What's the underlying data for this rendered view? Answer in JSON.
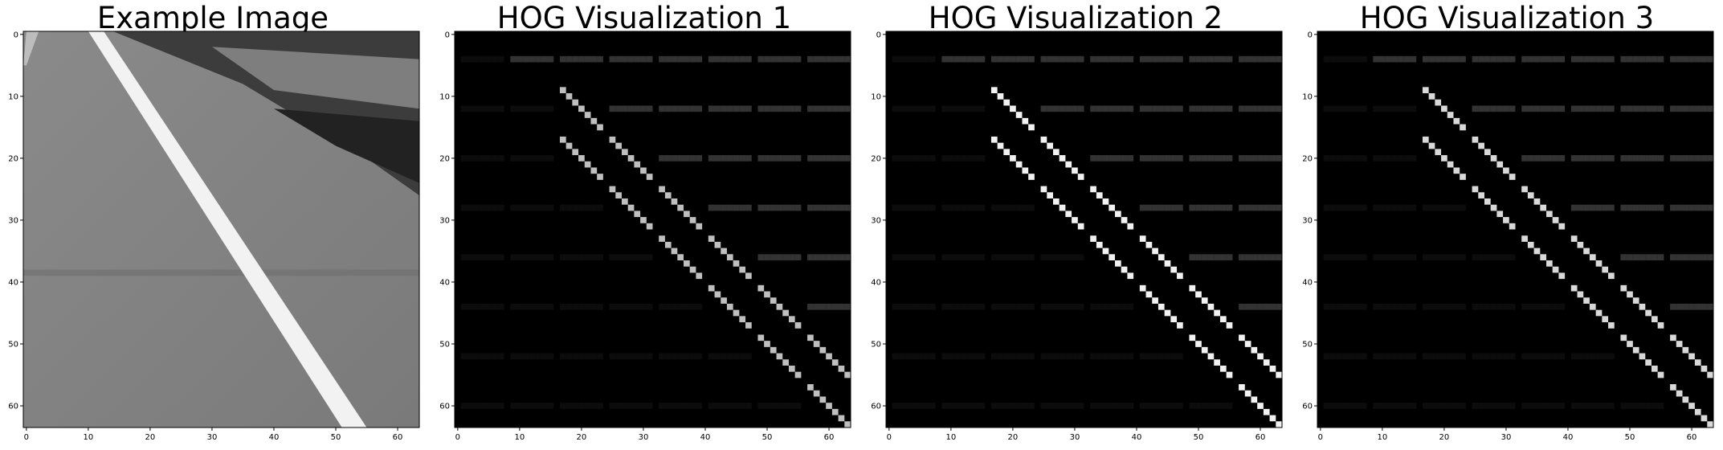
{
  "chart_data": [
    {
      "type": "heatmap",
      "title": "Example Image",
      "content": "grayscale road photo with a white lane line running diagonally from top-left to bottom-right",
      "xlim": [
        0,
        63
      ],
      "ylim": [
        63,
        0
      ],
      "xticks": [
        "0",
        "10",
        "20",
        "30",
        "40",
        "50",
        "60"
      ],
      "yticks": [
        "0",
        "10",
        "20",
        "30",
        "40",
        "50",
        "60"
      ],
      "grid": false
    },
    {
      "type": "heatmap",
      "title": "HOG Visualization 1",
      "content": "HOG gradient orientation cells; brightest oriented strokes follow the diagonal lane edge",
      "xlim": [
        0,
        63
      ],
      "ylim": [
        63,
        0
      ],
      "xticks": [
        "0",
        "10",
        "20",
        "30",
        "40",
        "50",
        "60"
      ],
      "yticks": [
        "0",
        "10",
        "20",
        "30",
        "40",
        "50",
        "60"
      ],
      "grid": false
    },
    {
      "type": "heatmap",
      "title": "HOG Visualization 2",
      "content": "HOG gradient orientation cells; brightest oriented strokes follow the diagonal lane edge",
      "xlim": [
        0,
        63
      ],
      "ylim": [
        63,
        0
      ],
      "xticks": [
        "0",
        "10",
        "20",
        "30",
        "40",
        "50",
        "60"
      ],
      "yticks": [
        "0",
        "10",
        "20",
        "30",
        "40",
        "50",
        "60"
      ],
      "grid": false
    },
    {
      "type": "heatmap",
      "title": "HOG Visualization 3",
      "content": "HOG gradient orientation cells; brightest oriented strokes follow the diagonal lane edge",
      "xlim": [
        0,
        63
      ],
      "ylim": [
        63,
        0
      ],
      "xticks": [
        "0",
        "10",
        "20",
        "30",
        "40",
        "50",
        "60"
      ],
      "yticks": [
        "0",
        "10",
        "20",
        "30",
        "40",
        "50",
        "60"
      ],
      "grid": false
    }
  ]
}
